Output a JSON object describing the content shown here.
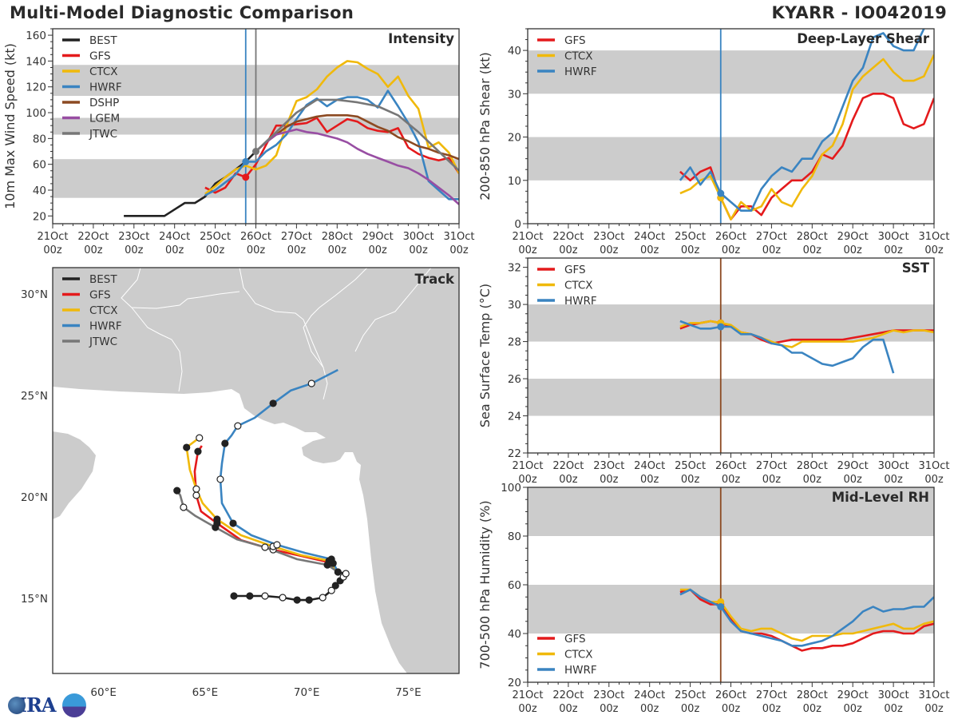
{
  "header": {
    "title": "Multi-Model Diagnostic Comparison",
    "storm": "KYARR - IO042019"
  },
  "logo": {
    "text": "CIRA"
  },
  "x_ticks": [
    {
      "date": "21Oct",
      "hour": "00z"
    },
    {
      "date": "22Oct",
      "hour": "00z"
    },
    {
      "date": "23Oct",
      "hour": "00z"
    },
    {
      "date": "24Oct",
      "hour": "00z"
    },
    {
      "date": "25Oct",
      "hour": "00z"
    },
    {
      "date": "26Oct",
      "hour": "00z"
    },
    {
      "date": "27Oct",
      "hour": "00z"
    },
    {
      "date": "28Oct",
      "hour": "00z"
    },
    {
      "date": "29Oct",
      "hour": "00z"
    },
    {
      "date": "30Oct",
      "hour": "00z"
    },
    {
      "date": "31Oct",
      "hour": "00z"
    }
  ],
  "colors": {
    "BEST": "#222222",
    "GFS": "#e41a1c",
    "CTCX": "#f0b90b",
    "HWRF": "#3a84c1",
    "DSHP": "#8c4a22",
    "LGEM": "#984ea3",
    "JTWC": "#777777",
    "band": "#cccccc",
    "land": "#cccccc"
  },
  "chart_data": [
    {
      "type": "line",
      "title": "Intensity",
      "ylabel": "10m Max Wind Speed (kt)",
      "xlim": [
        "21Oct 00z",
        "31Oct 00z"
      ],
      "ylim": [
        14,
        165
      ],
      "yticks": [
        20,
        40,
        60,
        80,
        100,
        120,
        140,
        160
      ],
      "bands": [
        [
          34,
          64
        ],
        [
          83,
          96
        ],
        [
          113,
          137
        ]
      ],
      "vlines": [
        {
          "time": "25Oct 18z",
          "color": "#3a84c1"
        },
        {
          "time": "26Oct 00z",
          "color": "#777777"
        }
      ],
      "legend": "top-left",
      "grid": false,
      "series": [
        {
          "name": "BEST",
          "start": "22Oct 18z",
          "step_hours": 6,
          "values": [
            20,
            20,
            20,
            20,
            20,
            25,
            30,
            30,
            35,
            45,
            50,
            56,
            62,
            70
          ]
        },
        {
          "name": "GFS",
          "start": "24Oct 18z",
          "step_hours": 6,
          "marker_time": "25Oct 18z",
          "values": [
            42,
            38,
            42,
            53,
            50,
            60,
            75,
            90,
            90,
            91,
            92,
            96,
            85,
            90,
            95,
            93,
            88,
            86,
            85,
            88,
            73,
            68,
            65,
            63,
            65,
            53
          ]
        },
        {
          "name": "CTCX",
          "start": "24Oct 18z",
          "step_hours": 6,
          "values": [
            37,
            43,
            50,
            56,
            59,
            56,
            59,
            67,
            90,
            109,
            112,
            118,
            128,
            135,
            140,
            139,
            134,
            130,
            120,
            128,
            113,
            103,
            73,
            77,
            69,
            53
          ]
        },
        {
          "name": "HWRF",
          "start": "24Oct 18z",
          "step_hours": 6,
          "marker_time": "25Oct 18z",
          "values": [
            36,
            40,
            46,
            52,
            62,
            62,
            70,
            75,
            83,
            95,
            106,
            111,
            105,
            110,
            112,
            112,
            110,
            104,
            117,
            105,
            92,
            77,
            47,
            40,
            33,
            33
          ]
        },
        {
          "name": "DSHP",
          "start": "26Oct 00z",
          "step_hours": 6,
          "values": [
            70,
            77,
            83,
            89,
            93,
            95,
            97,
            98,
            98,
            98,
            97,
            93,
            89,
            86,
            81,
            78,
            74,
            72,
            69,
            67,
            64
          ]
        },
        {
          "name": "LGEM",
          "start": "26Oct 00z",
          "step_hours": 6,
          "values": [
            70,
            77,
            83,
            85,
            87,
            85,
            84,
            82,
            80,
            77,
            72,
            68,
            65,
            62,
            59,
            57,
            53,
            48,
            42,
            36,
            29
          ]
        },
        {
          "name": "JTWC",
          "start": "26Oct 00z",
          "step_hours": 12,
          "marker_time": "26Oct 00z",
          "values": [
            70,
            85,
            100,
            110,
            110,
            108,
            105,
            98,
            85,
            70,
            55
          ]
        }
      ]
    },
    {
      "type": "line",
      "title": "Deep-Layer Shear",
      "ylabel": "200-850 hPa Shear (kt)",
      "xlim": [
        "21Oct 00z",
        "31Oct 00z"
      ],
      "ylim": [
        0,
        45
      ],
      "yticks": [
        0,
        10,
        20,
        30,
        40
      ],
      "bands": [
        [
          10,
          20
        ],
        [
          30,
          40
        ]
      ],
      "vlines": [
        {
          "time": "25Oct 18z",
          "color": "#3a84c1"
        }
      ],
      "legend": "top-left",
      "grid": false,
      "series": [
        {
          "name": "GFS",
          "start": "24Oct 18z",
          "step_hours": 6,
          "marker_time": "25Oct 18z",
          "values": [
            12,
            10,
            12,
            13,
            6,
            1,
            4,
            4,
            2,
            6,
            8,
            10,
            10,
            12,
            16,
            15,
            18,
            24,
            29,
            30,
            30,
            29,
            23,
            22,
            23,
            29
          ]
        },
        {
          "name": "CTCX",
          "start": "24Oct 18z",
          "step_hours": 6,
          "marker_time": "25Oct 18z",
          "values": [
            7,
            8,
            10,
            11,
            6,
            1,
            5,
            3,
            4,
            8,
            5,
            4,
            8,
            11,
            16,
            18,
            23,
            31,
            34,
            36,
            38,
            35,
            33,
            33,
            34,
            39
          ]
        },
        {
          "name": "HWRF",
          "start": "24Oct 18z",
          "step_hours": 6,
          "marker_time": "25Oct 18z",
          "values": [
            10,
            13,
            9,
            12,
            7,
            5,
            3,
            3,
            8,
            11,
            13,
            12,
            15,
            15,
            19,
            21,
            27,
            33,
            36,
            43,
            44,
            41,
            40,
            40,
            45,
            48
          ]
        }
      ]
    },
    {
      "type": "line",
      "title": "SST",
      "ylabel": "Sea Surface Temp (°C)",
      "xlim": [
        "21Oct 00z",
        "31Oct 00z"
      ],
      "ylim": [
        22,
        32.5
      ],
      "yticks": [
        22,
        24,
        26,
        28,
        30,
        32
      ],
      "bands": [
        [
          24,
          26
        ],
        [
          28,
          30
        ]
      ],
      "vlines": [
        {
          "time": "25Oct 18z",
          "color": "#8c4a22"
        }
      ],
      "legend": "top-left",
      "grid": false,
      "series": [
        {
          "name": "GFS",
          "start": "24Oct 18z",
          "step_hours": 6,
          "marker_time": "25Oct 18z",
          "values": [
            28.7,
            28.9,
            29.0,
            29.1,
            29.0,
            28.8,
            28.5,
            28.4,
            28.1,
            27.9,
            28.0,
            28.1,
            28.1,
            28.1,
            28.1,
            28.1,
            28.1,
            28.2,
            28.3,
            28.4,
            28.5,
            28.6,
            28.6,
            28.6,
            28.6,
            28.6
          ]
        },
        {
          "name": "CTCX",
          "start": "24Oct 18z",
          "step_hours": 6,
          "marker_time": "25Oct 18z",
          "values": [
            28.8,
            29.0,
            29.0,
            29.1,
            29.0,
            28.9,
            28.5,
            28.4,
            28.2,
            28.0,
            27.8,
            27.7,
            28.0,
            28.0,
            28.0,
            28.0,
            28.0,
            28.0,
            28.1,
            28.2,
            28.4,
            28.6,
            28.5,
            28.6,
            28.6,
            28.5
          ]
        },
        {
          "name": "HWRF",
          "start": "24Oct 18z",
          "step_hours": 6,
          "marker_time": "25Oct 18z",
          "values": [
            29.1,
            28.9,
            28.7,
            28.7,
            28.8,
            28.8,
            28.4,
            28.4,
            28.2,
            27.9,
            27.8,
            27.4,
            27.4,
            27.1,
            26.8,
            26.7,
            26.9,
            27.1,
            27.7,
            28.1,
            28.1,
            26.3
          ]
        }
      ]
    },
    {
      "type": "line",
      "title": "Mid-Level RH",
      "ylabel": "700-500 hPa Humidity (%)",
      "xlim": [
        "21Oct 00z",
        "31Oct 00z"
      ],
      "ylim": [
        20,
        100
      ],
      "yticks": [
        20,
        40,
        60,
        80,
        100
      ],
      "bands": [
        [
          40,
          60
        ],
        [
          80,
          100
        ]
      ],
      "vlines": [
        {
          "time": "25Oct 18z",
          "color": "#8c4a22"
        }
      ],
      "legend": "bottom-left",
      "grid": false,
      "series": [
        {
          "name": "GFS",
          "start": "24Oct 18z",
          "step_hours": 6,
          "marker_time": "25Oct 18z",
          "values": [
            57,
            58,
            54,
            52,
            52,
            46,
            41,
            40,
            40,
            39,
            37,
            35,
            33,
            34,
            34,
            35,
            35,
            36,
            38,
            40,
            41,
            41,
            40,
            40,
            43,
            44
          ]
        },
        {
          "name": "CTCX",
          "start": "24Oct 18z",
          "step_hours": 6,
          "marker_time": "25Oct 18z",
          "values": [
            58,
            58,
            55,
            53,
            53,
            47,
            42,
            41,
            42,
            42,
            40,
            38,
            37,
            39,
            39,
            39,
            40,
            40,
            41,
            42,
            43,
            44,
            42,
            42,
            44,
            45
          ]
        },
        {
          "name": "HWRF",
          "start": "24Oct 18z",
          "step_hours": 6,
          "marker_time": "25Oct 18z",
          "values": [
            56,
            58,
            55,
            53,
            51,
            45,
            41,
            40,
            39,
            38,
            37,
            35,
            35,
            36,
            37,
            39,
            42,
            45,
            49,
            51,
            49,
            50,
            50,
            51,
            51,
            55
          ]
        }
      ]
    },
    {
      "type": "map-track",
      "title": "Track",
      "xlim": [
        57.5,
        77.5
      ],
      "ylim": [
        11.3,
        31.3
      ],
      "lon_ticks": [
        {
          "v": 60,
          "label": "60°E"
        },
        {
          "v": 65,
          "label": "65°E"
        },
        {
          "v": 70,
          "label": "70°E"
        },
        {
          "v": 75,
          "label": "75°E"
        }
      ],
      "lat_ticks": [
        {
          "v": 15,
          "label": "15°N"
        },
        {
          "v": 20,
          "label": "20°N"
        },
        {
          "v": 25,
          "label": "25°N"
        },
        {
          "v": 30,
          "label": "30°N"
        }
      ],
      "legend": "top-left",
      "series": [
        {
          "name": "BEST",
          "points": [
            [
              66.42,
              15.12
            ],
            [
              67.2,
              15.12
            ],
            [
              67.95,
              15.12
            ],
            [
              68.82,
              15.04
            ],
            [
              69.53,
              14.92
            ],
            [
              70.12,
              14.92
            ],
            [
              70.79,
              15.04
            ],
            [
              71.22,
              15.39
            ],
            [
              71.42,
              15.63
            ],
            [
              71.65,
              15.87
            ],
            [
              71.81,
              16.06
            ],
            [
              71.93,
              16.22
            ],
            [
              71.54,
              16.3
            ]
          ]
        },
        {
          "name": "GFS",
          "points": [
            [
              71.54,
              16.3
            ],
            [
              71.3,
              16.73
            ],
            [
              69.92,
              17.05
            ],
            [
              68.35,
              17.4
            ],
            [
              66.77,
              17.87
            ],
            [
              65.59,
              18.7
            ],
            [
              64.8,
              19.29
            ],
            [
              64.57,
              20.08
            ],
            [
              64.49,
              21.26
            ],
            [
              64.65,
              22.24
            ],
            [
              64.84,
              22.52
            ]
          ]
        },
        {
          "name": "CTCX",
          "points": [
            [
              71.54,
              16.3
            ],
            [
              71.1,
              16.85
            ],
            [
              69.72,
              17.13
            ],
            [
              68.35,
              17.56
            ],
            [
              66.77,
              18.11
            ],
            [
              65.59,
              18.9
            ],
            [
              64.88,
              19.69
            ],
            [
              64.57,
              20.39
            ],
            [
              64.25,
              21.34
            ],
            [
              64.09,
              22.44
            ],
            [
              64.61,
              22.83
            ],
            [
              64.72,
              22.91
            ]
          ]
        },
        {
          "name": "HWRF",
          "points": [
            [
              71.54,
              16.3
            ],
            [
              71.22,
              16.93
            ],
            [
              69.92,
              17.24
            ],
            [
              68.54,
              17.64
            ],
            [
              67.28,
              18.11
            ],
            [
              66.38,
              18.7
            ],
            [
              65.83,
              19.69
            ],
            [
              65.75,
              20.87
            ],
            [
              65.83,
              21.65
            ],
            [
              65.98,
              22.64
            ],
            [
              66.3,
              23.03
            ],
            [
              66.61,
              23.5
            ],
            [
              67.44,
              23.9
            ],
            [
              68.35,
              24.61
            ],
            [
              69.21,
              25.24
            ],
            [
              70.24,
              25.59
            ],
            [
              71.54,
              26.26
            ]
          ]
        },
        {
          "name": "JTWC",
          "points": [
            [
              71.54,
              16.3
            ],
            [
              71.02,
              16.65
            ],
            [
              69.53,
              16.93
            ],
            [
              67.95,
              17.52
            ],
            [
              66.57,
              17.91
            ],
            [
              65.51,
              18.5
            ],
            [
              64.53,
              19.06
            ],
            [
              63.94,
              19.49
            ],
            [
              63.78,
              20.08
            ],
            [
              63.62,
              20.31
            ]
          ]
        }
      ]
    }
  ]
}
